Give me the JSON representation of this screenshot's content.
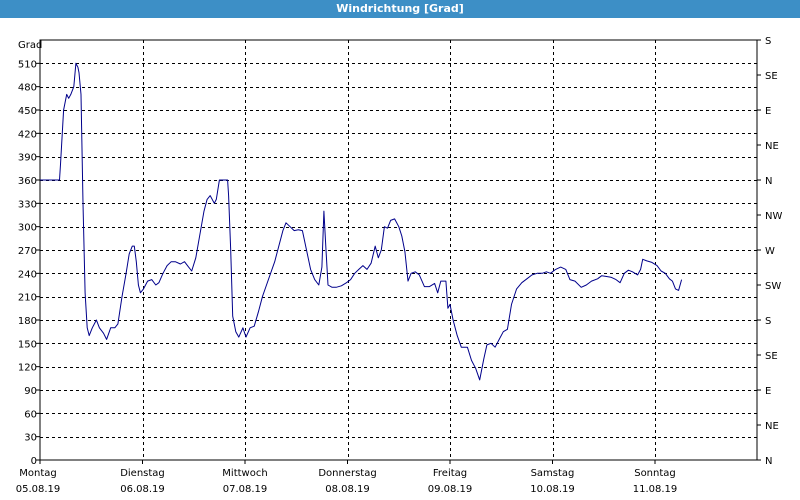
{
  "window": {
    "title": "Windrichtung [Grad]"
  },
  "chart_data": {
    "type": "line",
    "title": "Windrichtung [Grad]",
    "ylabel": "Grad",
    "ylim": [
      0,
      540
    ],
    "yticks": [
      0,
      30,
      60,
      90,
      120,
      150,
      180,
      210,
      240,
      270,
      300,
      330,
      360,
      390,
      420,
      450,
      480,
      510
    ],
    "y2_ticks": [
      {
        "value": 0,
        "label": "N"
      },
      {
        "value": 45,
        "label": "NE"
      },
      {
        "value": 90,
        "label": "E"
      },
      {
        "value": 135,
        "label": "SE"
      },
      {
        "value": 180,
        "label": "S"
      },
      {
        "value": 225,
        "label": "SW"
      },
      {
        "value": 270,
        "label": "W"
      },
      {
        "value": 315,
        "label": "NW"
      },
      {
        "value": 360,
        "label": "N"
      },
      {
        "value": 405,
        "label": "NE"
      },
      {
        "value": 450,
        "label": "E"
      },
      {
        "value": 495,
        "label": "SE"
      },
      {
        "value": 540,
        "label": "S"
      }
    ],
    "xlim": [
      0,
      7
    ],
    "x_unit": "days since 05.08.19",
    "x_ticks": [
      {
        "value": 0,
        "day": "Montag",
        "date": "05.08.19"
      },
      {
        "value": 1,
        "day": "Dienstag",
        "date": "06.08.19"
      },
      {
        "value": 2,
        "day": "Mittwoch",
        "date": "07.08.19"
      },
      {
        "value": 3,
        "day": "Donnerstag",
        "date": "08.08.19"
      },
      {
        "value": 4,
        "day": "Freitag",
        "date": "09.08.19"
      },
      {
        "value": 5,
        "day": "Samstag",
        "date": "10.08.19"
      },
      {
        "value": 6,
        "day": "Sonntag",
        "date": "11.08.19"
      }
    ],
    "grid": true,
    "line_color": "#00008b",
    "series": [
      {
        "points": [
          [
            0,
            360
          ],
          [
            0.19,
            360
          ],
          [
            0.2,
            380
          ],
          [
            0.23,
            450
          ],
          [
            0.26,
            470
          ],
          [
            0.28,
            465
          ],
          [
            0.3,
            470
          ],
          [
            0.33,
            480
          ],
          [
            0.35,
            510
          ],
          [
            0.37,
            505
          ],
          [
            0.38,
            498
          ],
          [
            0.4,
            470
          ],
          [
            0.42,
            330
          ],
          [
            0.44,
            215
          ],
          [
            0.46,
            170
          ],
          [
            0.48,
            160
          ],
          [
            0.51,
            170
          ],
          [
            0.55,
            180
          ],
          [
            0.58,
            170
          ],
          [
            0.62,
            163
          ],
          [
            0.65,
            155
          ],
          [
            0.69,
            170
          ],
          [
            0.73,
            170
          ],
          [
            0.76,
            175
          ],
          [
            0.8,
            210
          ],
          [
            0.84,
            240
          ],
          [
            0.87,
            265
          ],
          [
            0.9,
            275
          ],
          [
            0.92,
            275
          ],
          [
            0.94,
            255
          ],
          [
            0.96,
            225
          ],
          [
            0.98,
            215
          ],
          [
            1.01,
            220
          ],
          [
            1.05,
            230
          ],
          [
            1.09,
            232
          ],
          [
            1.13,
            225
          ],
          [
            1.16,
            228
          ],
          [
            1.2,
            240
          ],
          [
            1.24,
            250
          ],
          [
            1.28,
            255
          ],
          [
            1.32,
            255
          ],
          [
            1.37,
            252
          ],
          [
            1.41,
            255
          ],
          [
            1.45,
            248
          ],
          [
            1.48,
            243
          ],
          [
            1.52,
            260
          ],
          [
            1.56,
            290
          ],
          [
            1.6,
            320
          ],
          [
            1.63,
            335
          ],
          [
            1.66,
            340
          ],
          [
            1.7,
            330
          ],
          [
            1.72,
            335
          ],
          [
            1.75,
            360
          ],
          [
            1.8,
            360
          ],
          [
            1.83,
            360
          ],
          [
            1.84,
            340
          ],
          [
            1.86,
            270
          ],
          [
            1.88,
            185
          ],
          [
            1.91,
            165
          ],
          [
            1.94,
            158
          ],
          [
            1.98,
            170
          ],
          [
            2.01,
            158
          ],
          [
            2.05,
            170
          ],
          [
            2.09,
            172
          ],
          [
            2.13,
            190
          ],
          [
            2.17,
            210
          ],
          [
            2.21,
            225
          ],
          [
            2.25,
            240
          ],
          [
            2.29,
            255
          ],
          [
            2.33,
            275
          ],
          [
            2.37,
            295
          ],
          [
            2.4,
            305
          ],
          [
            2.44,
            300
          ],
          [
            2.48,
            295
          ],
          [
            2.52,
            296
          ],
          [
            2.56,
            295
          ],
          [
            2.6,
            270
          ],
          [
            2.64,
            245
          ],
          [
            2.68,
            232
          ],
          [
            2.72,
            225
          ],
          [
            2.75,
            248
          ],
          [
            2.77,
            320
          ],
          [
            2.79,
            270
          ],
          [
            2.81,
            225
          ],
          [
            2.85,
            222
          ],
          [
            2.89,
            222
          ],
          [
            2.94,
            224
          ],
          [
            2.99,
            228
          ],
          [
            3.03,
            232
          ],
          [
            3.07,
            240
          ],
          [
            3.11,
            245
          ],
          [
            3.15,
            250
          ],
          [
            3.19,
            245
          ],
          [
            3.23,
            253
          ],
          [
            3.27,
            275
          ],
          [
            3.3,
            260
          ],
          [
            3.33,
            270
          ],
          [
            3.36,
            300
          ],
          [
            3.39,
            298
          ],
          [
            3.42,
            308
          ],
          [
            3.46,
            310
          ],
          [
            3.5,
            300
          ],
          [
            3.53,
            288
          ],
          [
            3.56,
            268
          ],
          [
            3.59,
            230
          ],
          [
            3.62,
            240
          ],
          [
            3.66,
            242
          ],
          [
            3.7,
            238
          ],
          [
            3.75,
            223
          ],
          [
            3.8,
            223
          ],
          [
            3.85,
            227
          ],
          [
            3.88,
            215
          ],
          [
            3.91,
            230
          ],
          [
            3.96,
            230
          ],
          [
            3.98,
            195
          ],
          [
            4.0,
            200
          ],
          [
            4.03,
            180
          ],
          [
            4.07,
            160
          ],
          [
            4.11,
            145
          ],
          [
            4.17,
            145
          ],
          [
            4.21,
            128
          ],
          [
            4.25,
            118
          ],
          [
            4.29,
            103
          ],
          [
            4.33,
            130
          ],
          [
            4.36,
            148
          ],
          [
            4.4,
            150
          ],
          [
            4.44,
            145
          ],
          [
            4.48,
            155
          ],
          [
            4.52,
            165
          ],
          [
            4.56,
            168
          ],
          [
            4.6,
            200
          ],
          [
            4.65,
            220
          ],
          [
            4.7,
            228
          ],
          [
            4.75,
            233
          ],
          [
            4.8,
            238
          ],
          [
            4.85,
            240
          ],
          [
            4.9,
            240
          ],
          [
            4.94,
            242
          ],
          [
            4.98,
            240
          ],
          [
            5.03,
            245
          ],
          [
            5.08,
            248
          ],
          [
            5.13,
            245
          ],
          [
            5.17,
            232
          ],
          [
            5.22,
            230
          ],
          [
            5.28,
            222
          ],
          [
            5.33,
            225
          ],
          [
            5.38,
            230
          ],
          [
            5.44,
            233
          ],
          [
            5.48,
            237
          ],
          [
            5.52,
            236
          ],
          [
            5.57,
            235
          ],
          [
            5.62,
            232
          ],
          [
            5.66,
            228
          ],
          [
            5.7,
            240
          ],
          [
            5.74,
            244
          ],
          [
            5.78,
            242
          ],
          [
            5.83,
            238
          ],
          [
            5.86,
            245
          ],
          [
            5.88,
            258
          ],
          [
            5.92,
            256
          ],
          [
            5.97,
            254
          ],
          [
            6.02,
            250
          ],
          [
            6.06,
            243
          ],
          [
            6.1,
            240
          ],
          [
            6.14,
            233
          ],
          [
            6.17,
            230
          ],
          [
            6.2,
            220
          ],
          [
            6.23,
            218
          ],
          [
            6.26,
            232
          ]
        ]
      }
    ]
  }
}
